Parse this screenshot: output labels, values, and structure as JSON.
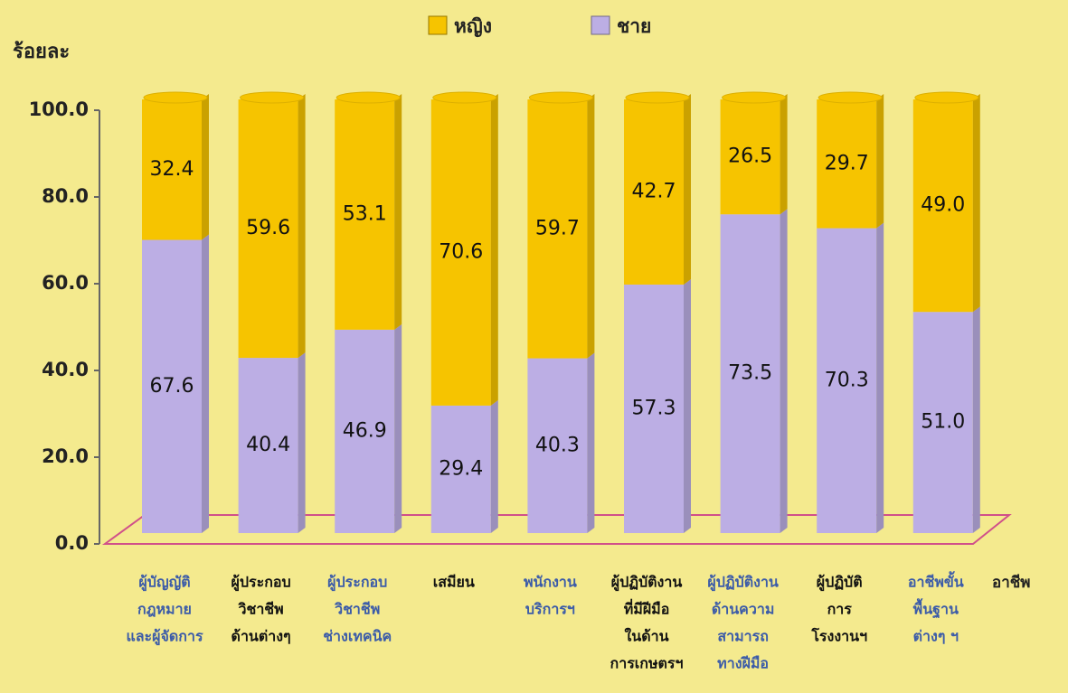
{
  "chart_data": {
    "type": "stacked_bar",
    "y_axis_label": "ร้อยละ",
    "x_axis_label": "อาชีพ",
    "categories": [
      [
        "ผู้บัญญัติ",
        "กฎหมาย",
        "และผู้จัดการ"
      ],
      [
        "ผู้ประกอบ",
        "วิชาชีพ",
        "ด้านต่างๆ"
      ],
      [
        "ผู้ประกอบ",
        "วิชาชีพ",
        "ช่างเทคนิค"
      ],
      [
        "เสมียน"
      ],
      [
        "พนักงาน",
        "บริการฯ"
      ],
      [
        "ผู้ปฏิบัติงาน",
        "ที่มีฝีมือ",
        "ในด้าน",
        "การเกษตรฯ"
      ],
      [
        "ผู้ปฏิบัติงาน",
        "ด้านความ",
        "สามารถ",
        "ทางฝีมือ"
      ],
      [
        "ผู้ปฏิบัติ",
        "การ",
        "โรงงานฯ"
      ],
      [
        "อาชีพขั้น",
        "พื้นฐาน",
        "ต่างๆ ฯ"
      ]
    ],
    "category_colors": [
      "#3b5ba8",
      "#111111",
      "#3b5ba8",
      "#111111",
      "#3b5ba8",
      "#111111",
      "#3b5ba8",
      "#111111",
      "#3b5ba8"
    ],
    "series": [
      {
        "name": "ชาย",
        "color": "#bcaee4",
        "values": [
          67.6,
          40.4,
          46.9,
          29.4,
          40.3,
          57.3,
          73.5,
          70.3,
          51.0
        ],
        "value_labels": [
          "67.6",
          "40.4",
          "46.9",
          "29.4",
          "40.3",
          "57.3",
          "73.5",
          "70.3",
          "51.0"
        ]
      },
      {
        "name": "หญิง",
        "color": "#f6c400",
        "values": [
          32.4,
          59.6,
          53.1,
          70.6,
          59.7,
          42.7,
          26.5,
          29.7,
          49.0
        ],
        "value_labels": [
          "32.4",
          "59.6",
          "53.1",
          "70.6",
          "59.7",
          "42.7",
          "26.5",
          "29.7",
          "49.0"
        ]
      }
    ],
    "ylim": [
      0,
      100
    ],
    "yticks": [
      {
        "value": 0,
        "label": "0.0"
      },
      {
        "value": 20,
        "label": "20.0"
      },
      {
        "value": 40,
        "label": "40.0"
      },
      {
        "value": 60,
        "label": "60.0"
      },
      {
        "value": 80,
        "label": "80.0"
      },
      {
        "value": 100,
        "label": "100.0"
      }
    ]
  }
}
